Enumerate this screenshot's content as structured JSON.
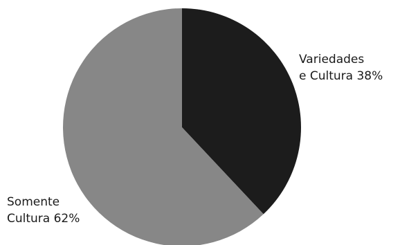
{
  "chart_data": {
    "type": "pie",
    "slices": [
      {
        "label_lines": [
          "Variedades",
          "e Cultura 38%"
        ],
        "label": "Variedades e Cultura",
        "value": 38,
        "color": "#1c1c1c"
      },
      {
        "label_lines": [
          "Somente",
          "Cultura 62%"
        ],
        "label": "Somente Cultura",
        "value": 62,
        "color": "#878787"
      }
    ]
  }
}
